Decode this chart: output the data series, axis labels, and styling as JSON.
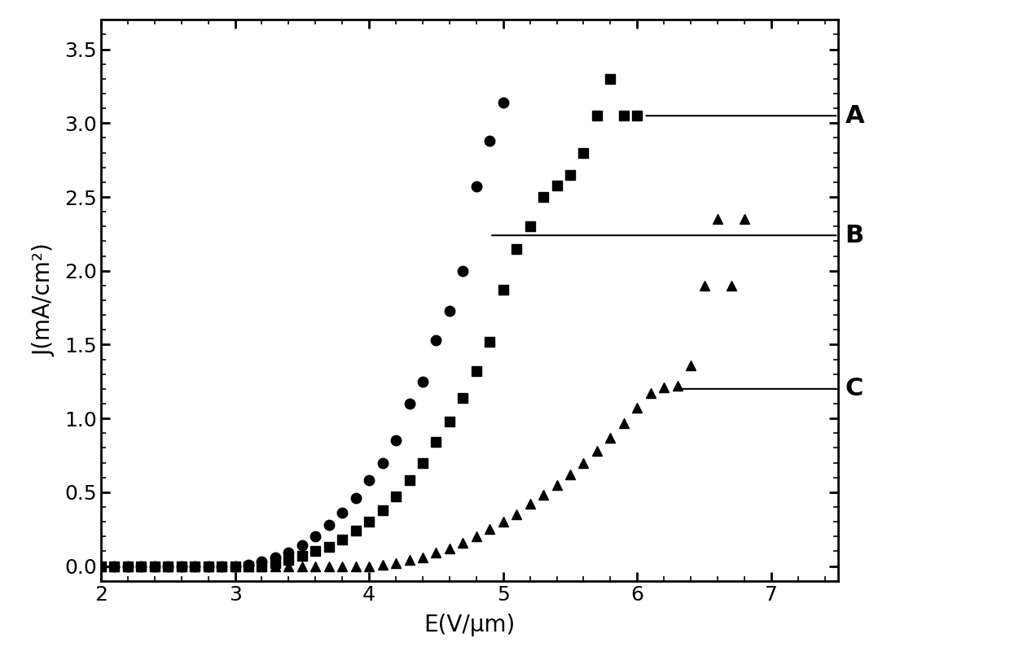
{
  "title": "",
  "xlabel": "E(V/μm)",
  "ylabel": "J(mA/cm²)",
  "xlim": [
    2.0,
    7.5
  ],
  "ylim": [
    -0.1,
    3.7
  ],
  "xticks": [
    2,
    3,
    4,
    5,
    6,
    7
  ],
  "yticks": [
    0.0,
    0.5,
    1.0,
    1.5,
    2.0,
    2.5,
    3.0,
    3.5
  ],
  "series_A": {
    "marker": "s",
    "x": [
      2.0,
      2.1,
      2.2,
      2.3,
      2.4,
      2.5,
      2.6,
      2.7,
      2.8,
      2.9,
      3.0,
      3.1,
      3.2,
      3.3,
      3.4,
      3.5,
      3.6,
      3.7,
      3.8,
      3.9,
      4.0,
      4.1,
      4.2,
      4.3,
      4.4,
      4.5,
      4.6,
      4.7,
      4.8,
      4.9,
      5.0,
      5.1,
      5.2,
      5.3,
      5.4,
      5.5,
      5.6,
      5.7,
      5.8,
      5.9,
      6.0
    ],
    "y": [
      0.0,
      0.0,
      0.0,
      0.0,
      0.0,
      0.0,
      0.0,
      0.0,
      0.0,
      0.0,
      0.0,
      0.0,
      0.0,
      0.02,
      0.04,
      0.07,
      0.1,
      0.13,
      0.18,
      0.24,
      0.3,
      0.38,
      0.47,
      0.58,
      0.7,
      0.84,
      0.98,
      1.14,
      1.32,
      1.52,
      1.87,
      2.15,
      2.3,
      2.5,
      2.58,
      2.65,
      2.8,
      3.05,
      3.3,
      3.05,
      3.05
    ]
  },
  "series_B": {
    "marker": "o",
    "x": [
      2.0,
      2.1,
      2.2,
      2.3,
      2.4,
      2.5,
      2.6,
      2.7,
      2.8,
      2.9,
      3.0,
      3.1,
      3.2,
      3.3,
      3.4,
      3.5,
      3.6,
      3.7,
      3.8,
      3.9,
      4.0,
      4.1,
      4.2,
      4.3,
      4.4,
      4.5,
      4.6,
      4.7,
      4.8,
      4.9,
      5.0
    ],
    "y": [
      0.0,
      0.0,
      0.0,
      0.0,
      0.0,
      0.0,
      0.0,
      0.0,
      0.0,
      0.0,
      0.0,
      0.01,
      0.03,
      0.06,
      0.09,
      0.14,
      0.2,
      0.28,
      0.36,
      0.46,
      0.58,
      0.7,
      0.85,
      1.1,
      1.25,
      1.53,
      1.73,
      2.0,
      2.57,
      2.88,
      3.14
    ]
  },
  "series_C": {
    "marker": "^",
    "x": [
      2.0,
      2.1,
      2.2,
      2.3,
      2.4,
      2.5,
      2.6,
      2.7,
      2.8,
      2.9,
      3.0,
      3.1,
      3.2,
      3.3,
      3.4,
      3.5,
      3.6,
      3.7,
      3.8,
      3.9,
      4.0,
      4.1,
      4.2,
      4.3,
      4.4,
      4.5,
      4.6,
      4.7,
      4.8,
      4.9,
      5.0,
      5.1,
      5.2,
      5.3,
      5.4,
      5.5,
      5.6,
      5.7,
      5.8,
      5.9,
      6.0,
      6.1,
      6.2,
      6.3,
      6.4,
      6.5,
      6.6,
      6.7,
      6.8
    ],
    "y": [
      0.0,
      0.0,
      0.0,
      0.0,
      0.0,
      0.0,
      0.0,
      0.0,
      0.0,
      0.0,
      0.0,
      0.0,
      0.0,
      0.0,
      0.0,
      0.0,
      0.0,
      0.0,
      0.0,
      0.0,
      0.0,
      0.01,
      0.02,
      0.04,
      0.06,
      0.09,
      0.12,
      0.16,
      0.2,
      0.25,
      0.3,
      0.35,
      0.42,
      0.48,
      0.55,
      0.62,
      0.7,
      0.78,
      0.87,
      0.97,
      1.07,
      1.17,
      1.21,
      1.22,
      1.36,
      1.9,
      2.35,
      1.9,
      2.35
    ]
  },
  "ann_A_y": 3.05,
  "ann_B_y": 2.24,
  "ann_C_y": 1.2,
  "ann_A_xstart": 6.05,
  "ann_B_xstart": 4.9,
  "ann_C_xstart": 6.28,
  "background_color": "#ffffff",
  "marker_size": 9,
  "tick_labelsize": 18,
  "axis_labelsize": 20
}
